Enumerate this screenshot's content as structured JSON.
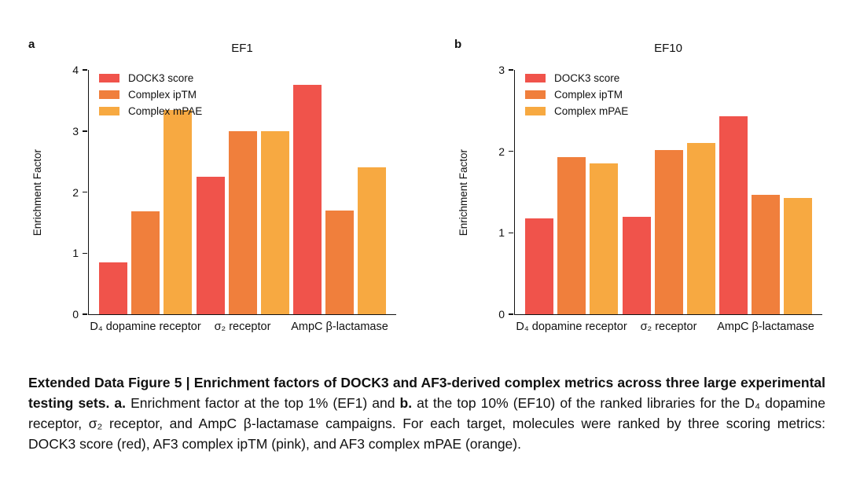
{
  "chart_data": [
    {
      "type": "bar",
      "panel_label": "a",
      "title": "EF1",
      "xlabel": "",
      "ylabel": "Enrichment Factor",
      "ylim": [
        0,
        4
      ],
      "ytick_step": 1,
      "grid": false,
      "legend_position": "upper-left-inside",
      "categories": [
        "D₄ dopamine receptor",
        "σ₂ receptor",
        "AmpC β-lactamase"
      ],
      "series": [
        {
          "name": "DOCK3 score",
          "color": "#f0534b",
          "values": [
            0.85,
            2.25,
            3.75
          ]
        },
        {
          "name": "Complex ipTM",
          "color": "#f07f3c",
          "values": [
            1.68,
            3.0,
            1.7
          ]
        },
        {
          "name": "Complex mPAE",
          "color": "#f7a941",
          "values": [
            3.35,
            3.0,
            2.4
          ]
        }
      ]
    },
    {
      "type": "bar",
      "panel_label": "b",
      "title": "EF10",
      "xlabel": "",
      "ylabel": "Enrichment Factor",
      "ylim": [
        0,
        3
      ],
      "ytick_step": 1,
      "grid": false,
      "legend_position": "upper-left-inside",
      "categories": [
        "D₄ dopamine receptor",
        "σ₂ receptor",
        "AmpC β-lactamase"
      ],
      "series": [
        {
          "name": "DOCK3 score",
          "color": "#f0534b",
          "values": [
            1.18,
            1.2,
            2.43
          ]
        },
        {
          "name": "Complex ipTM",
          "color": "#f07f3c",
          "values": [
            1.93,
            2.02,
            1.47
          ]
        },
        {
          "name": "Complex mPAE",
          "color": "#f7a941",
          "values": [
            1.85,
            2.1,
            1.43
          ]
        }
      ]
    }
  ],
  "caption": {
    "part1_bold": "Extended Data Figure 5 | Enrichment factors of DOCK3 and AF3-derived complex metrics across three large experimental testing sets. ",
    "a_bold": "a.",
    "part2": " Enrichment factor at the top 1% (EF1) and ",
    "b_bold": "b.",
    "part3": " at the top 10% (EF10) of the ranked libraries for the D₄ dopamine receptor, σ₂ receptor, and AmpC β-lactamase campaigns. For each target, molecules were ranked by three scoring metrics: DOCK3 score (red), AF3 complex ipTM (pink), and AF3 complex mPAE (orange)."
  }
}
